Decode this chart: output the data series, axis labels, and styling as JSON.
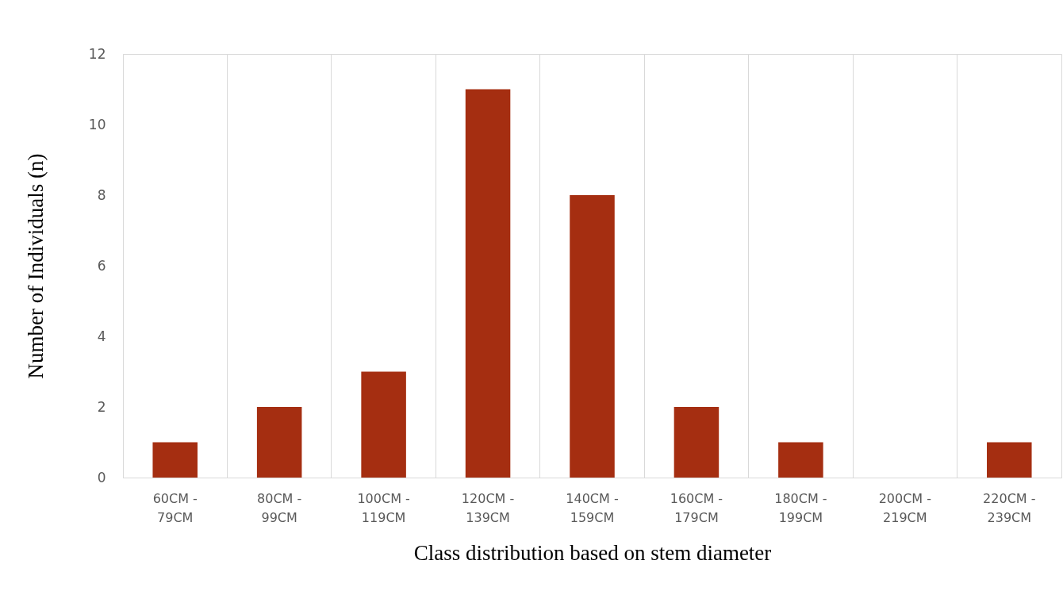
{
  "chart_data": {
    "type": "bar",
    "xlabel": "Class distribution based on stem diameter",
    "ylabel": "Number of Individuals (n)",
    "categories": [
      "60CM - 79CM",
      "80CM - 99CM",
      "100CM - 119CM",
      "120CM - 139CM",
      "140CM - 159CM",
      "160CM - 179CM",
      "180CM - 199CM",
      "200CM - 219CM",
      "220CM - 239CM"
    ],
    "values": [
      1,
      2,
      3,
      11,
      8,
      2,
      1,
      0,
      1
    ],
    "color": "#a52e11",
    "ylim": [
      0,
      12
    ],
    "yticks": [
      0,
      2,
      4,
      6,
      8,
      10,
      12
    ],
    "grid": "x"
  }
}
